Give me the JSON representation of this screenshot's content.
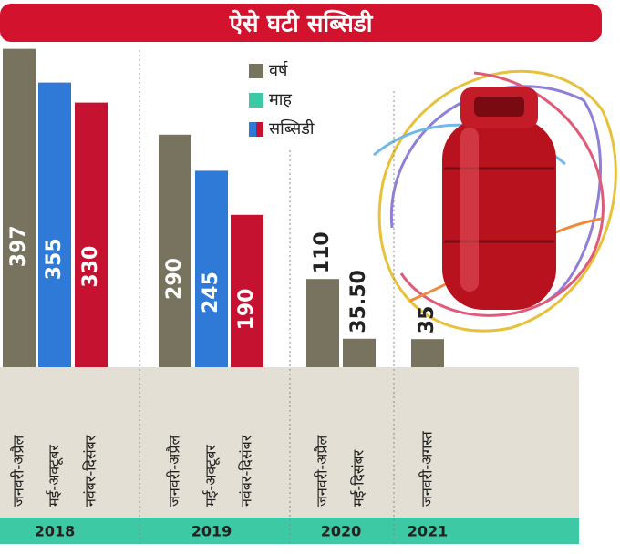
{
  "chart_data": {
    "type": "bar",
    "title": "ऐसे घटी सब्सिडी",
    "legend": [
      {
        "name": "वर्ष",
        "color": "#77735e"
      },
      {
        "name": "माह",
        "color": "#3cc9a3"
      },
      {
        "name": "सब्सिडी",
        "colors": [
          "#2f7ad6",
          "#c41230"
        ]
      }
    ],
    "groups": [
      {
        "name": "2018",
        "categories": [
          "जनवरी-अप्रैल",
          "मई-अक्टूबर",
          "नवंबर-दिसंबर"
        ],
        "values": [
          397,
          355,
          330
        ],
        "colors": [
          "#77735e",
          "#2f7ad6",
          "#c41230"
        ]
      },
      {
        "name": "2019",
        "categories": [
          "जनवरी-अप्रैल",
          "मई-अक्टूबर",
          "नवंबर-दिसंबर"
        ],
        "values": [
          290,
          245,
          190
        ],
        "colors": [
          "#77735e",
          "#2f7ad6",
          "#c41230"
        ]
      },
      {
        "name": "2020",
        "categories": [
          "जनवरी-अप्रैल",
          "मई-दिसंबर"
        ],
        "values": [
          110,
          35.5
        ],
        "value_labels": [
          "110",
          "35.50"
        ],
        "colors": [
          "#77735e",
          "#77735e"
        ]
      },
      {
        "name": "2021",
        "categories": [
          "जनवरी-अगस्त"
        ],
        "values": [
          35
        ],
        "colors": [
          "#77735e"
        ]
      }
    ]
  }
}
